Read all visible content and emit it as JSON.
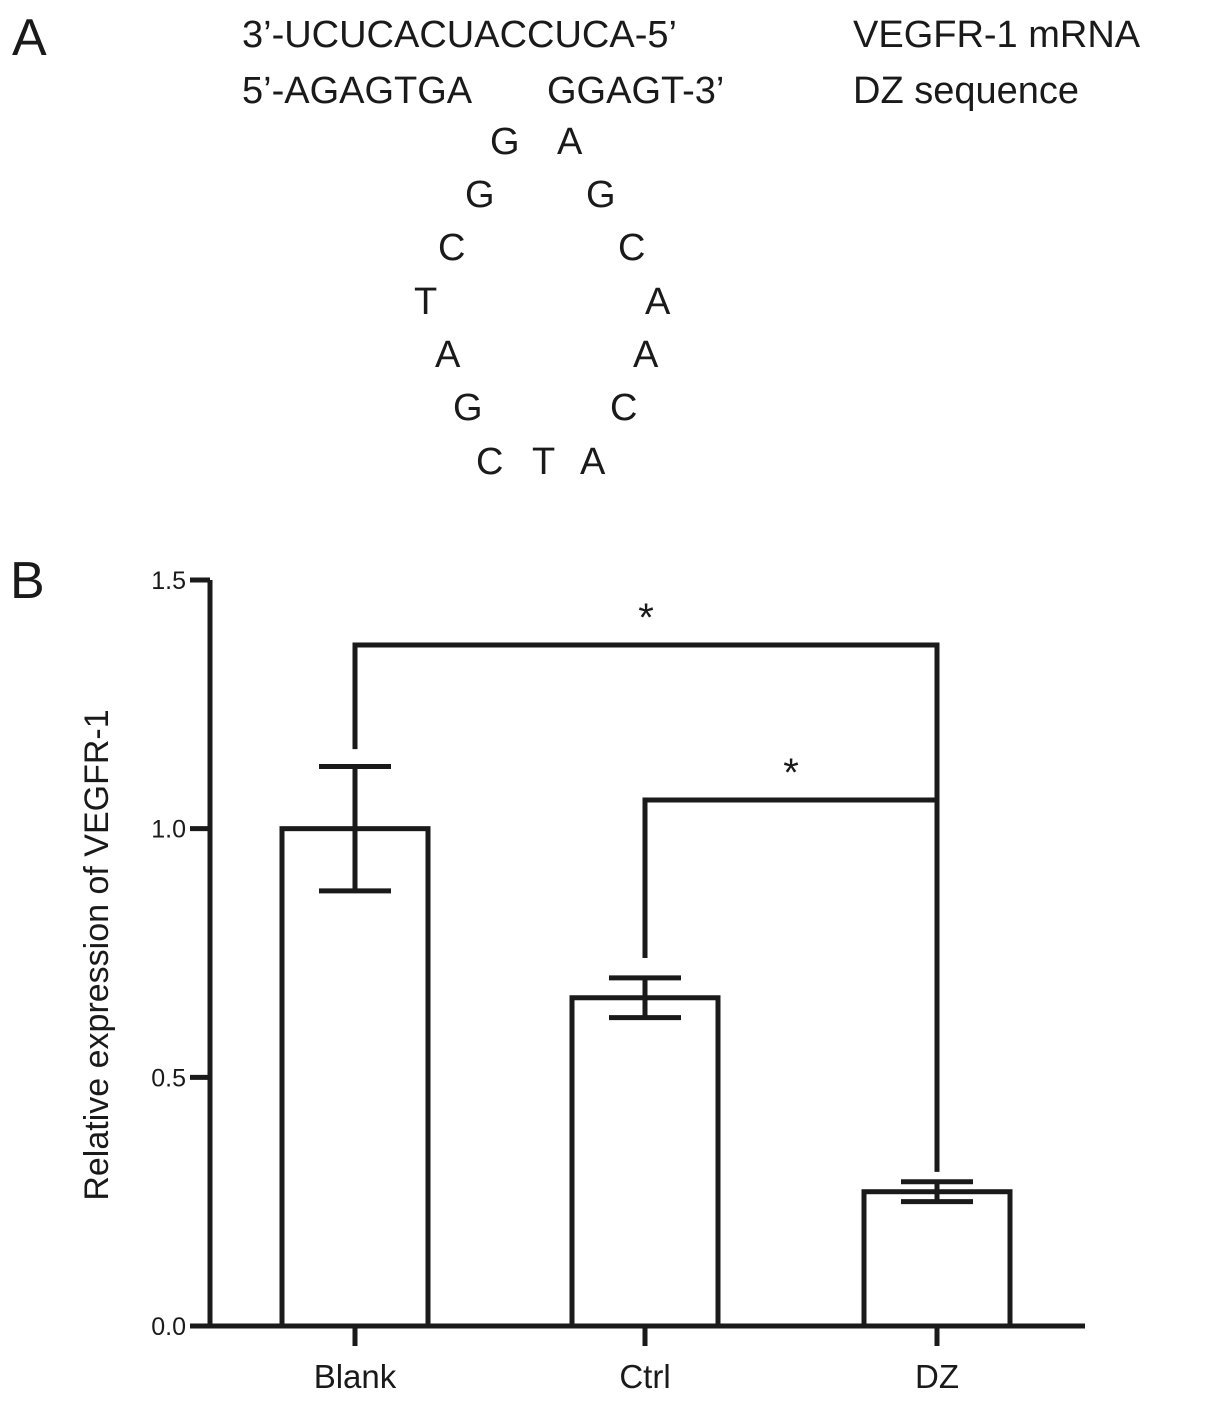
{
  "panel_a": {
    "label": "A",
    "mrna_seq": "3’-UCUCACUACCUCA-5’",
    "dz_seq_left": "5’-AGAGTGA",
    "dz_seq_right": "GGAGT-3’",
    "mrna_label": "VEGFR-1 mRNA",
    "dz_label": "DZ sequence",
    "loop": [
      "G",
      "A",
      "G",
      "G",
      "C",
      "C",
      "T",
      "A",
      "A",
      "A",
      "G",
      "C",
      "C",
      "T",
      "A"
    ]
  },
  "panel_b": {
    "label": "B"
  },
  "chart_data": {
    "type": "bar",
    "categories": [
      "Blank",
      "Ctrl",
      "DZ"
    ],
    "values": [
      1.0,
      0.66,
      0.27
    ],
    "errors": [
      0.125,
      0.04,
      0.02
    ],
    "ylabel": "Relative expression of VEGFR-1",
    "xlabel": "",
    "ylim": [
      0,
      1.5
    ],
    "yticks": [
      "0.0",
      "0.5",
      "1.0",
      "1.5"
    ],
    "ytick_values": [
      0,
      0.5,
      1.0,
      1.5
    ],
    "significance": [
      {
        "from": "Blank",
        "to": "DZ",
        "label": "*"
      },
      {
        "from": "Ctrl",
        "to": "DZ",
        "label": "*"
      }
    ],
    "colors": {
      "bar_fill": "#ffffff",
      "stroke": "#1a1a1a"
    }
  }
}
